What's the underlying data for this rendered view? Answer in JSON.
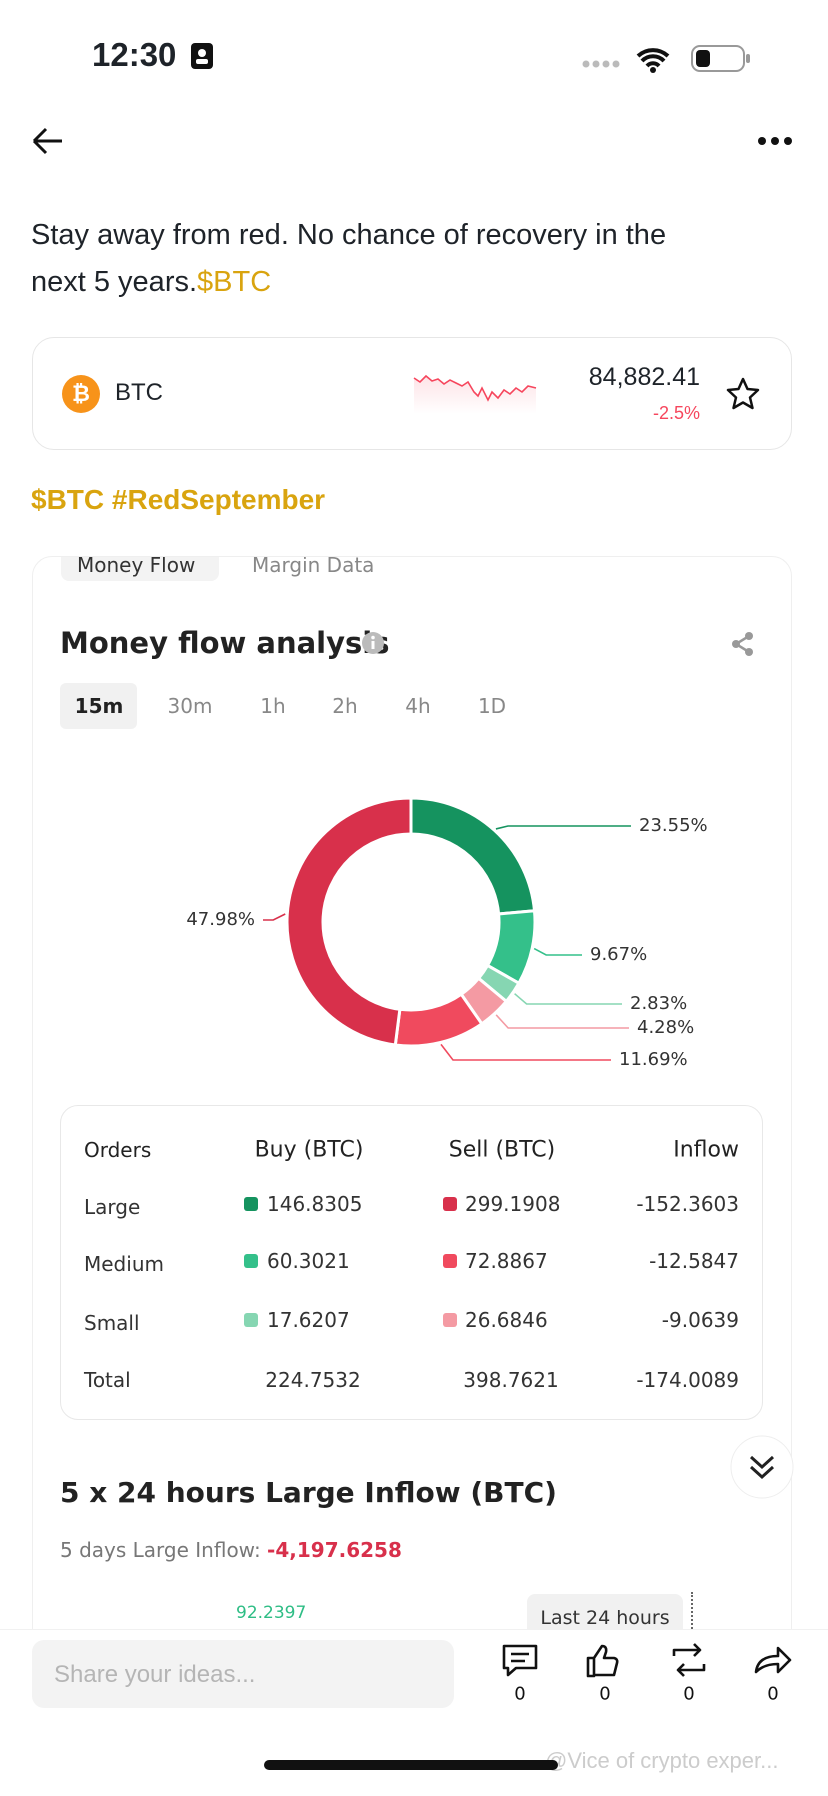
{
  "status_bar": {
    "time": "12:30"
  },
  "post": {
    "text_lines": [
      "Stay away from red. No chance of recovery in the",
      "next 5 years."
    ],
    "cashtag": "$BTC",
    "hashtags": "$BTC #RedSeptember"
  },
  "ticker": {
    "symbol": "BTC",
    "price": "84,882.41",
    "change": "-2.5%"
  },
  "panel": {
    "tabs": [
      "Money Flow",
      "Margin Data"
    ],
    "title": "Money flow analysis",
    "intervals": [
      "15m",
      "30m",
      "1h",
      "2h",
      "4h",
      "1D"
    ],
    "donut": [
      {
        "value": 23.55,
        "label": "23.55%",
        "color": "#15935f"
      },
      {
        "value": 9.67,
        "label": "9.67%",
        "color": "#34c08a"
      },
      {
        "value": 2.83,
        "label": "2.83%",
        "color": "#86d6b2"
      },
      {
        "value": 4.28,
        "label": "4.28%",
        "color": "#f49aa3"
      },
      {
        "value": 11.69,
        "label": "11.69%",
        "color": "#f04a5e"
      },
      {
        "value": 47.98,
        "label": "47.98%",
        "color": "#d8304b"
      }
    ],
    "table": {
      "header": [
        "Orders",
        "Buy (BTC)",
        "Sell (BTC)",
        "Inflow"
      ],
      "rows": [
        [
          "Large",
          "146.8305",
          "299.1908",
          "-152.3603"
        ],
        [
          "Medium",
          "60.3021",
          "72.8867",
          "-12.5847"
        ],
        [
          "Small",
          "17.6207",
          "26.6846",
          "-9.0639"
        ],
        [
          "Total",
          "224.7532",
          "398.7621",
          "-174.0089"
        ]
      ]
    },
    "inflow_title": "5 x 24 hours Large Inflow (BTC)",
    "inflow_label": "5 days Large Inflow:",
    "inflow_value": "-4,197.6258",
    "chart_peak": "92.2397",
    "tooltip": "Last 24 hours"
  },
  "composer": {
    "placeholder": "Share your ideas...",
    "counts": [
      "0",
      "0",
      "0",
      "0"
    ]
  },
  "watermark": "@Vice of crypto exper..."
}
